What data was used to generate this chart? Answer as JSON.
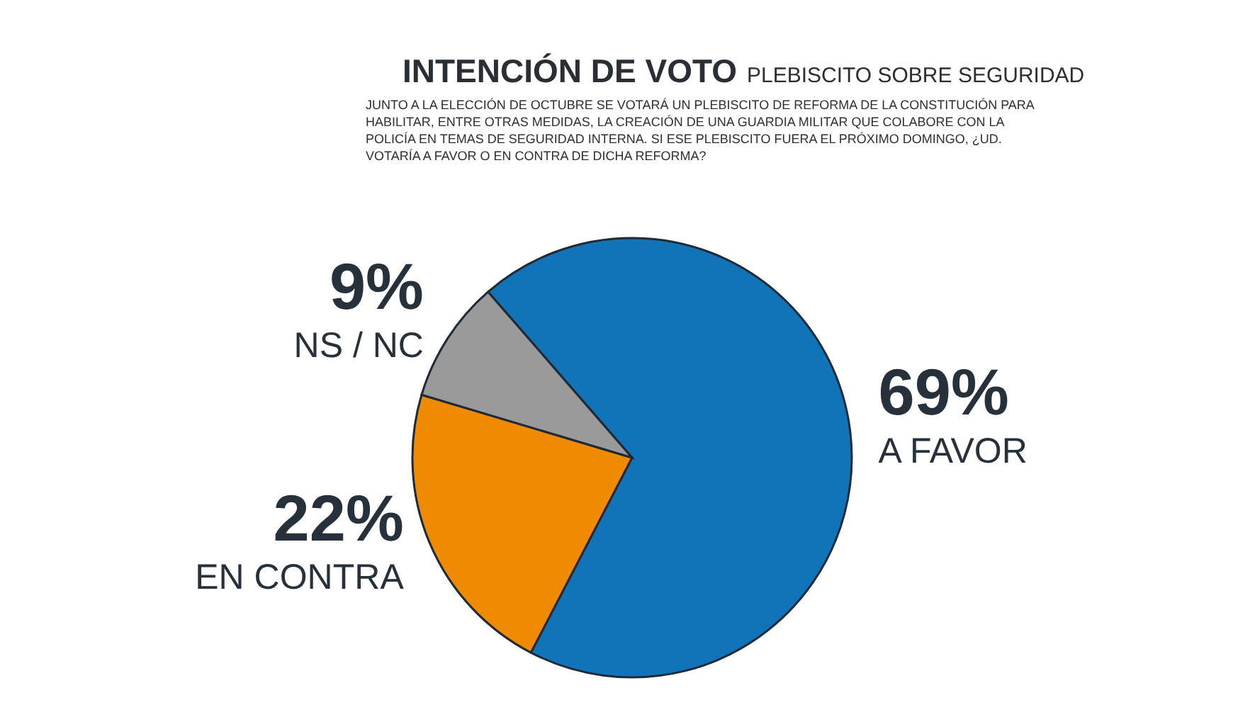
{
  "chart_data": {
    "type": "pie",
    "title": "INTENCIÓN DE VOTO",
    "subtitle": "PLEBISCITO SOBRE SEGURIDAD",
    "annotations": [
      "JUNTO A LA ELECCIÓN DE OCTUBRE SE VOTARÁ UN PLEBISCITO DE REFORMA DE LA CONSTITUCIÓN PARA HABILITAR, ENTRE OTRAS MEDIDAS, LA CREACIÓN DE UNA GUARDIA MILITAR QUE COLABORE CON LA POLICÍA EN TEMAS DE SEGURIDAD INTERNA. SI ESE PLEBISCITO FUERA EL PRÓXIMO DOMINGO, ¿UD. VOTARÍA A FAVOR O EN CONTRA DE DICHA REFORMA?"
    ],
    "categories": [
      "A FAVOR",
      "EN CONTRA",
      "NS / NC"
    ],
    "values": [
      69,
      22,
      9
    ],
    "value_labels": [
      "69%",
      "22%",
      "9%"
    ],
    "colors": [
      "#1274b8",
      "#f08a00",
      "#9a9a9a"
    ]
  }
}
